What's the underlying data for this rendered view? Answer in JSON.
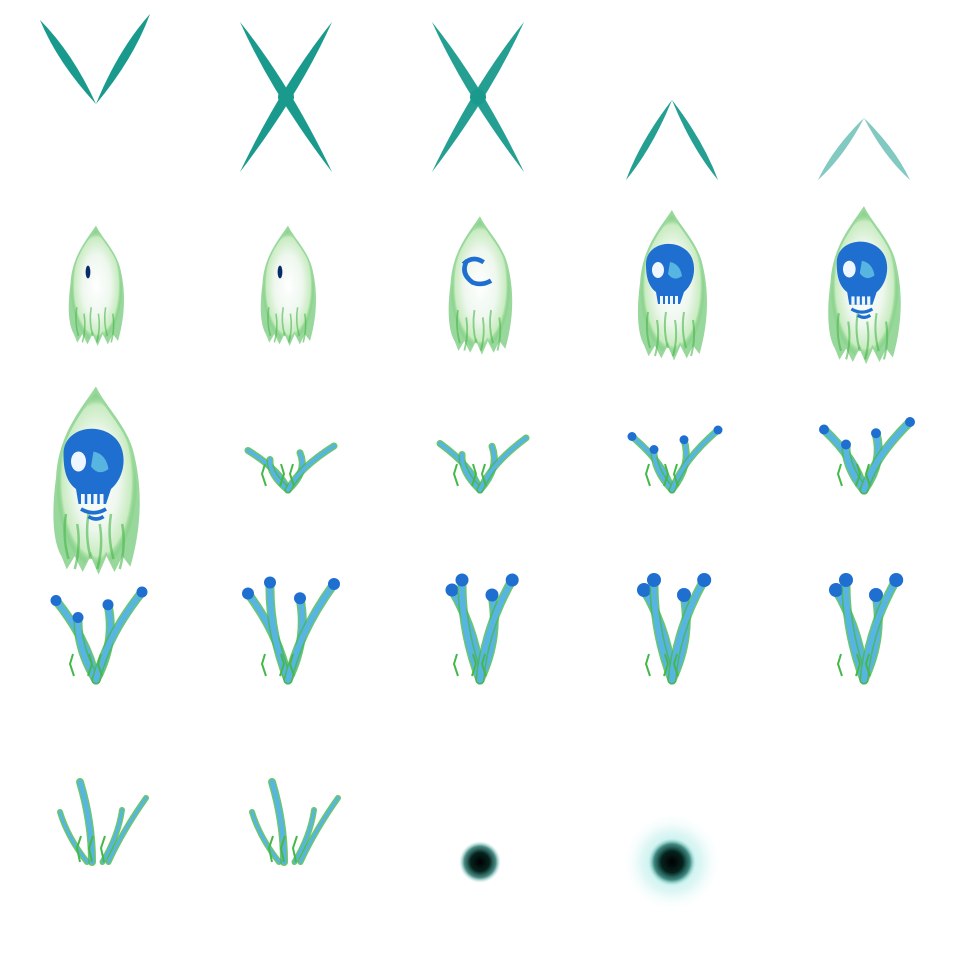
{
  "sprite_sheet": {
    "grid": {
      "columns": 5,
      "rows": 5
    },
    "colors": {
      "teal": "#1a9a8c",
      "teal_light": "#8fd8cf",
      "green": "#46b84a",
      "green_light": "#cfeec6",
      "blue": "#1f6fd0",
      "blue_light": "#58b4e0",
      "core_dark": "#06231e",
      "aura": "#9fe7e2"
    },
    "frames": [
      {
        "kind": "slash-v",
        "phase": 1
      },
      {
        "kind": "slash-x",
        "phase": 2
      },
      {
        "kind": "slash-x",
        "phase": 3
      },
      {
        "kind": "slash-caret",
        "phase": 4
      },
      {
        "kind": "slash-caret",
        "phase": 5
      },
      {
        "kind": "ghost",
        "phase": 1
      },
      {
        "kind": "ghost",
        "phase": 2
      },
      {
        "kind": "ghost",
        "phase": 3
      },
      {
        "kind": "ghost",
        "phase": 4
      },
      {
        "kind": "ghost",
        "phase": 5
      },
      {
        "kind": "ghost",
        "phase": 6
      },
      {
        "kind": "tendrils",
        "phase": 1
      },
      {
        "kind": "tendrils",
        "phase": 2
      },
      {
        "kind": "tendrils",
        "phase": 3
      },
      {
        "kind": "tendrils",
        "phase": 4
      },
      {
        "kind": "tendrils",
        "phase": 5
      },
      {
        "kind": "tendrils",
        "phase": 6
      },
      {
        "kind": "tendrils",
        "phase": 7
      },
      {
        "kind": "tendrils",
        "phase": 8
      },
      {
        "kind": "tendrils",
        "phase": 9
      },
      {
        "kind": "wisps",
        "phase": 1
      },
      {
        "kind": "wisps",
        "phase": 2
      },
      {
        "kind": "orb",
        "phase": 1
      },
      {
        "kind": "orb",
        "phase": 2
      },
      {
        "kind": "empty",
        "phase": 0
      }
    ]
  }
}
